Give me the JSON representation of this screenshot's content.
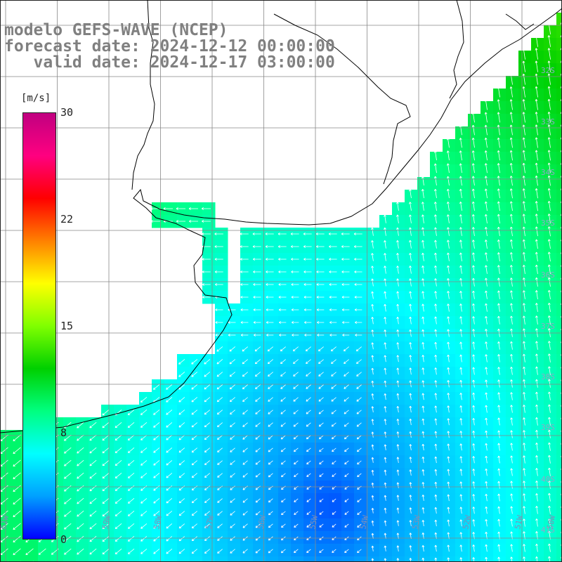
{
  "title": {
    "line1": "modelo GEFS-WAVE (NCEP)",
    "line2": "forecast date: 2024-12-12 00:00:00",
    "line3": "   valid date: 2024-12-17 03:00:00"
  },
  "colorbar": {
    "unit": "[m/s]",
    "ticks": [
      "30",
      "22",
      "15",
      "8",
      "0"
    ],
    "tick_values": [
      30,
      22,
      15,
      8,
      0
    ],
    "range": [
      0,
      30
    ],
    "colors": [
      "#0000ff",
      "#00a0ff",
      "#00ffff",
      "#00ff80",
      "#00d000",
      "#80ff00",
      "#ffff00",
      "#ff8000",
      "#ff0000",
      "#ff0080",
      "#c00080"
    ]
  },
  "map": {
    "lon_labels": [
      "61W",
      "60W",
      "59W",
      "58W",
      "57W",
      "56W",
      "55W",
      "54W",
      "53W",
      "52W",
      "51W",
      "50W"
    ],
    "lat_labels": [
      "32S",
      "33S",
      "34S",
      "35S",
      "36S",
      "37S",
      "38S",
      "39S",
      "40S",
      "41S"
    ],
    "colors": {
      "land": "#ffffff",
      "grid": "#888888",
      "coast": "#000000",
      "arrow": "#ffffff"
    }
  }
}
